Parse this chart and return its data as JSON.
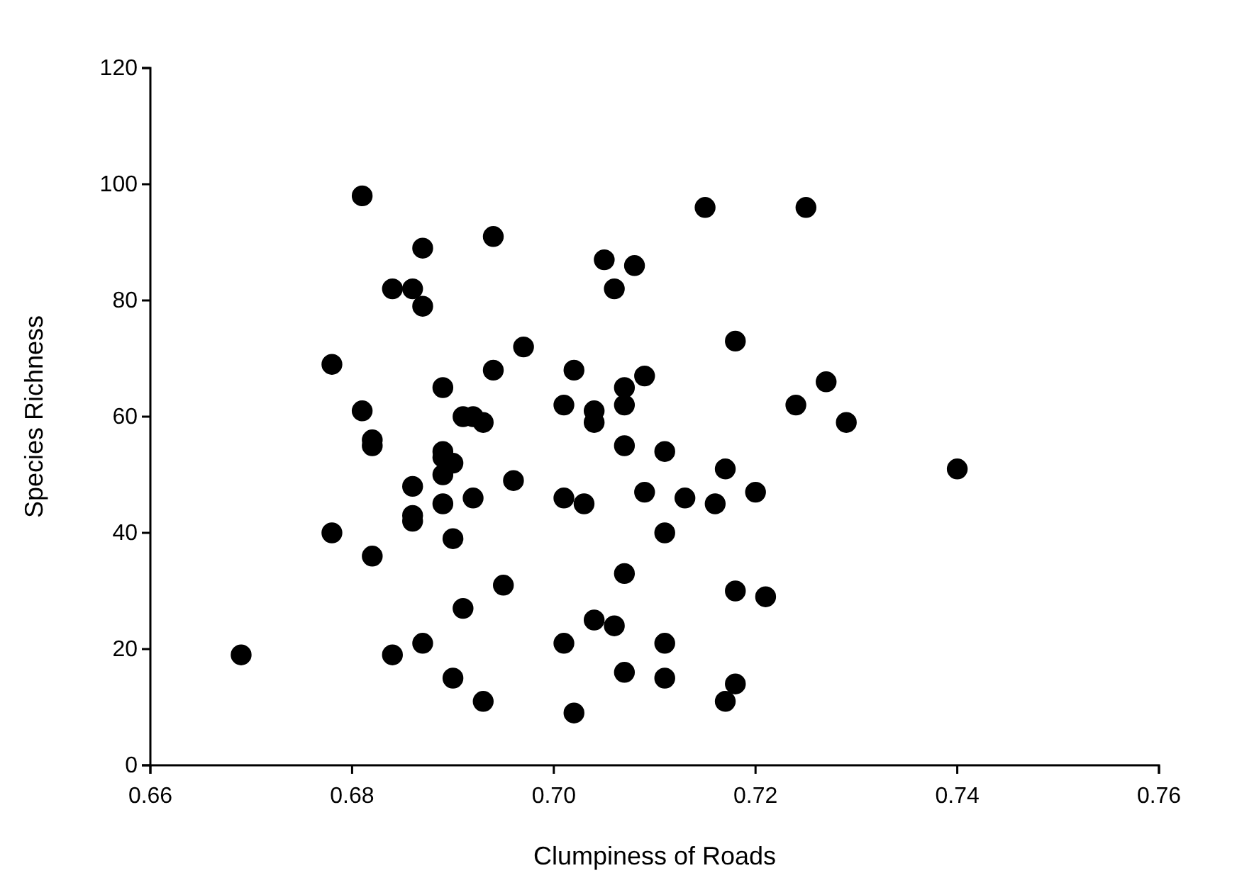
{
  "chart_data": {
    "type": "scatter",
    "xlabel": "Clumpiness of Roads",
    "ylabel": "Species Richness",
    "x": [
      0.681,
      0.687,
      0.684,
      0.686,
      0.687,
      0.694,
      0.705,
      0.708,
      0.706,
      0.715,
      0.725,
      0.678,
      0.681,
      0.682,
      0.682,
      0.689,
      0.691,
      0.692,
      0.693,
      0.694,
      0.697,
      0.702,
      0.701,
      0.704,
      0.704,
      0.707,
      0.707,
      0.709,
      0.718,
      0.724,
      0.727,
      0.729,
      0.689,
      0.689,
      0.69,
      0.689,
      0.686,
      0.686,
      0.686,
      0.689,
      0.69,
      0.692,
      0.696,
      0.707,
      0.711,
      0.717,
      0.74,
      0.701,
      0.703,
      0.709,
      0.713,
      0.716,
      0.72,
      0.711,
      0.678,
      0.682,
      0.695,
      0.691,
      0.707,
      0.718,
      0.721,
      0.669,
      0.684,
      0.687,
      0.69,
      0.693,
      0.701,
      0.704,
      0.706,
      0.702,
      0.707,
      0.711,
      0.711,
      0.717,
      0.718
    ],
    "values": [
      98,
      89,
      82,
      82,
      79,
      91,
      87,
      86,
      82,
      96,
      96,
      69,
      61,
      56,
      55,
      65,
      60,
      60,
      59,
      68,
      72,
      68,
      62,
      61,
      59,
      65,
      62,
      67,
      73,
      62,
      66,
      59,
      54,
      53,
      52,
      50,
      48,
      43,
      42,
      45,
      39,
      46,
      49,
      55,
      54,
      51,
      51,
      46,
      45,
      47,
      46,
      45,
      47,
      40,
      40,
      36,
      31,
      27,
      33,
      30,
      29,
      19,
      19,
      21,
      15,
      11,
      21,
      25,
      24,
      9,
      16,
      21,
      15,
      11,
      14
    ],
    "color": "#000000",
    "marker": "circle",
    "xlim": [
      0.66,
      0.76
    ],
    "xticks": [
      {
        "value": 0.66,
        "label": "0.66"
      },
      {
        "value": 0.68,
        "label": "0.68"
      },
      {
        "value": 0.7,
        "label": "0.70"
      },
      {
        "value": 0.72,
        "label": "0.72"
      },
      {
        "value": 0.74,
        "label": "0.74"
      },
      {
        "value": 0.76,
        "label": "0.76"
      }
    ],
    "ylim": [
      0,
      120
    ],
    "yticks": [
      0,
      20,
      40,
      60,
      80,
      100,
      120
    ],
    "grid": false
  }
}
